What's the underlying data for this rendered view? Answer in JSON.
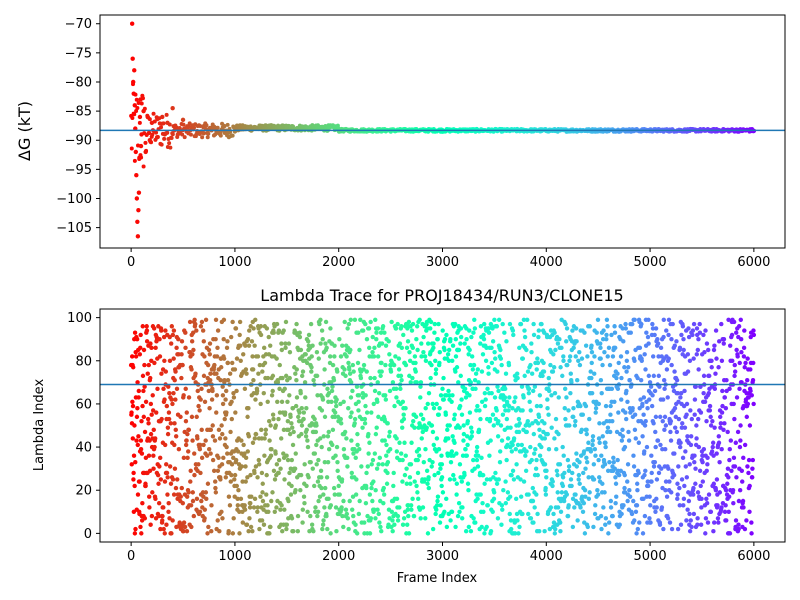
{
  "chart_data": [
    {
      "type": "scatter",
      "title": "",
      "xlabel": "",
      "ylabel": "ΔG (kT)",
      "xlim": [
        -300,
        6300
      ],
      "ylim": [
        -108.5,
        -68.5
      ],
      "xticks": [
        0,
        1000,
        2000,
        3000,
        4000,
        5000,
        6000
      ],
      "xtick_labels": [
        "0",
        "1000",
        "2000",
        "3000",
        "4000",
        "5000",
        "6000"
      ],
      "yticks": [
        -70,
        -75,
        -80,
        -85,
        -90,
        -95,
        -100,
        -105
      ],
      "ytick_labels": [
        "−70",
        "−75",
        "−80",
        "−85",
        "−90",
        "−95",
        "−100",
        "−105"
      ],
      "hline": {
        "y": -88.3,
        "color": "#1f77b4"
      },
      "colormap": "rainbow (red at frame 0 → purple at frame 6000)",
      "series": [
        {
          "description_points": [
            [
              10,
              -70
            ],
            [
              15,
              -76
            ],
            [
              20,
              -80
            ],
            [
              25,
              -82
            ],
            [
              30,
              -78
            ],
            [
              35,
              -84
            ],
            [
              40,
              -88
            ],
            [
              45,
              -92
            ],
            [
              50,
              -96
            ],
            [
              55,
              -100
            ],
            [
              60,
              -104
            ],
            [
              65,
              -106.5
            ],
            [
              70,
              -102
            ],
            [
              75,
              -99
            ],
            [
              80,
              -93
            ],
            [
              85,
              -86
            ],
            [
              90,
              -83
            ],
            [
              95,
              -91
            ],
            [
              100,
              -89
            ],
            [
              120,
              -85
            ],
            [
              140,
              -92
            ],
            [
              160,
              -86
            ],
            [
              180,
              -90
            ],
            [
              200,
              -87
            ],
            [
              250,
              -89.5
            ],
            [
              300,
              -86
            ],
            [
              350,
              -87
            ],
            [
              400,
              -84.5
            ],
            [
              450,
              -89
            ],
            [
              500,
              -86.5
            ],
            [
              600,
              -87.5
            ],
            [
              700,
              -88.8
            ],
            [
              800,
              -87.7
            ],
            [
              900,
              -88.7
            ],
            [
              1000,
              -88.5
            ],
            [
              1200,
              -87.8
            ],
            [
              1500,
              -87.9
            ],
            [
              2000,
              -88.4
            ],
            [
              2500,
              -88.2
            ],
            [
              3000,
              -88.5
            ],
            [
              4000,
              -88.4
            ],
            [
              5000,
              -88.4
            ],
            [
              6000,
              -88.4
            ]
          ]
        }
      ]
    },
    {
      "type": "scatter",
      "title": "Lambda Trace for PROJ18434/RUN3/CLONE15",
      "xlabel": "Frame Index",
      "ylabel": "Lambda Index",
      "xlim": [
        -300,
        6300
      ],
      "ylim": [
        -4,
        104
      ],
      "xticks": [
        0,
        1000,
        2000,
        3000,
        4000,
        5000,
        6000
      ],
      "xtick_labels": [
        "0",
        "1000",
        "2000",
        "3000",
        "4000",
        "5000",
        "6000"
      ],
      "yticks": [
        0,
        20,
        40,
        60,
        80,
        100
      ],
      "ytick_labels": [
        "0",
        "20",
        "40",
        "60",
        "80",
        "100"
      ],
      "hline": {
        "y": 69,
        "color": "#1f77b4"
      },
      "colormap": "rainbow (red at frame 0 → purple at frame 6000)",
      "frames": [
        0,
        6000
      ],
      "lambda_range": [
        0,
        99
      ]
    }
  ]
}
